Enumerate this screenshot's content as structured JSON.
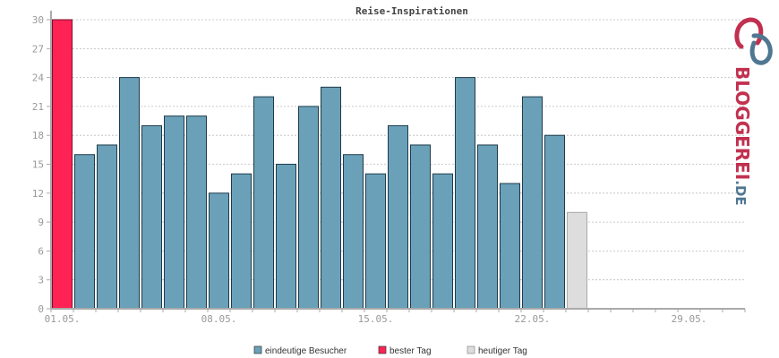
{
  "chart_data": {
    "type": "bar",
    "title": "Reise-Inspirationen",
    "ylim": [
      0,
      30
    ],
    "yticks": [
      0,
      3,
      6,
      9,
      12,
      15,
      18,
      21,
      24,
      27,
      30
    ],
    "grid": true,
    "x_axis_labels": [
      "01.05.",
      "08.05.",
      "15.05.",
      "22.05.",
      "29.05."
    ],
    "categories": [
      "01.05.",
      "02.05.",
      "03.05.",
      "04.05.",
      "05.05.",
      "06.05.",
      "07.05.",
      "08.05.",
      "09.05.",
      "10.05.",
      "11.05.",
      "12.05.",
      "13.05.",
      "14.05.",
      "15.05.",
      "16.05.",
      "17.05.",
      "18.05.",
      "19.05.",
      "20.05.",
      "21.05.",
      "22.05.",
      "23.05.",
      "24.05.",
      "25.05.",
      "26.05.",
      "27.05.",
      "28.05.",
      "29.05.",
      "30.05.",
      "31.05."
    ],
    "values": [
      30,
      16,
      17,
      24,
      19,
      20,
      20,
      12,
      14,
      22,
      15,
      21,
      23,
      16,
      14,
      19,
      17,
      14,
      24,
      17,
      13,
      22,
      18,
      10,
      null,
      null,
      null,
      null,
      null,
      null,
      null
    ],
    "best_day_index": 0,
    "today_index": 23,
    "legend_position": "bottom",
    "series": [
      {
        "name": "eindeutige Besucher",
        "color": "#6aa1b9"
      },
      {
        "name": "bester Tag",
        "color": "#ff2255"
      },
      {
        "name": "heutiger Tag",
        "color": "#dddddd"
      }
    ]
  },
  "logo": {
    "text_main": "BLOGGEREI",
    "text_suffix": ".DE",
    "color_main": "#c2304f",
    "color_suffix": "#4f7792"
  }
}
